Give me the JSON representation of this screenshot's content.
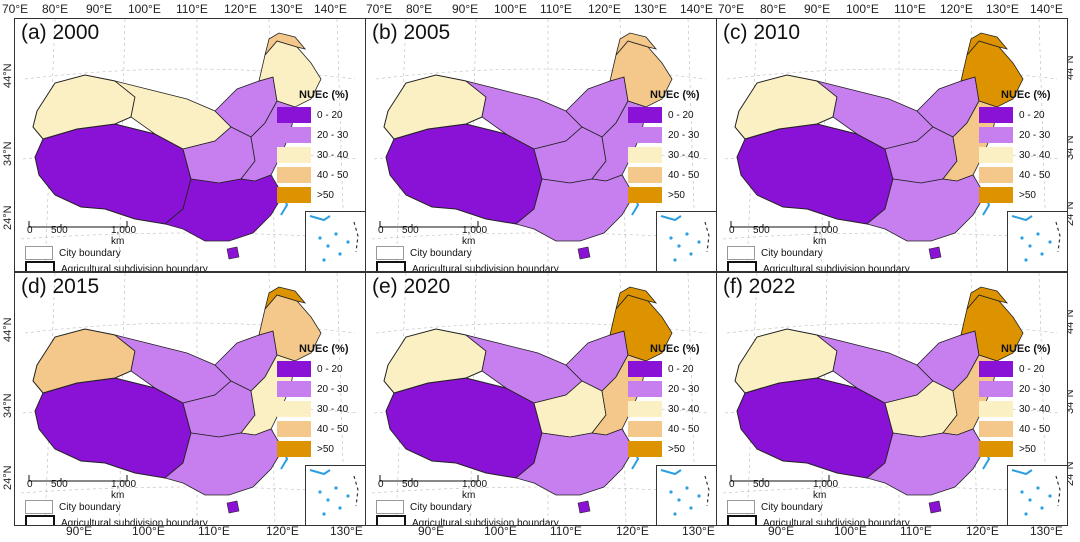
{
  "lon_top": [
    "70°E",
    "80°E",
    "90°E",
    "100°E",
    "110°E",
    "120°E",
    "130°E",
    "140°E"
  ],
  "lon_bottom": [
    "90°E",
    "100°E",
    "110°E",
    "120°E",
    "130°E"
  ],
  "lat_labels": [
    "44°N",
    "34°N",
    "24°N"
  ],
  "legend": {
    "title": "NUEc (%)",
    "items": [
      {
        "label": "0 - 20",
        "color": "#8a12d6"
      },
      {
        "label": "20 - 30",
        "color": "#c77ff0"
      },
      {
        "label": "30 - 40",
        "color": "#fbf0c4"
      },
      {
        "label": "40 - 50",
        "color": "#f3c88a"
      },
      {
        "label": ">50",
        "color": "#dd9200"
      }
    ]
  },
  "scalebar": {
    "ticks": [
      "0",
      "500",
      "1,000 km"
    ]
  },
  "boundaries": {
    "city": "City boundary",
    "subdivision": "Agricultural subdivision boundary"
  },
  "panels": [
    {
      "id": "a",
      "title": "(a) 2000",
      "fill": {
        "west": 0,
        "northwest": 2,
        "xinjiang": 2,
        "northeast": 2,
        "northeast_tip": 3,
        "north": 1,
        "central": 1,
        "south": 0,
        "east": 1
      }
    },
    {
      "id": "b",
      "title": "(b) 2005",
      "fill": {
        "west": 0,
        "northwest": 1,
        "xinjiang": 2,
        "northeast": 3,
        "northeast_tip": 3,
        "north": 1,
        "central": 1,
        "south": 1,
        "east": 1
      }
    },
    {
      "id": "c",
      "title": "(c) 2010",
      "fill": {
        "west": 0,
        "northwest": 1,
        "xinjiang": 2,
        "northeast": 4,
        "northeast_tip": 4,
        "north": 1,
        "central": 1,
        "south": 1,
        "east": 3
      }
    },
    {
      "id": "d",
      "title": "(d) 2015",
      "fill": {
        "west": 0,
        "northwest": 1,
        "xinjiang": 3,
        "northeast": 3,
        "northeast_tip": 4,
        "north": 1,
        "central": 1,
        "south": 1,
        "east": 2
      }
    },
    {
      "id": "e",
      "title": "(e) 2020",
      "fill": {
        "west": 0,
        "northwest": 1,
        "xinjiang": 2,
        "northeast": 4,
        "northeast_tip": 4,
        "north": 1,
        "central": 2,
        "south": 1,
        "east": 3
      }
    },
    {
      "id": "f",
      "title": "(f) 2022",
      "fill": {
        "west": 0,
        "northwest": 1,
        "xinjiang": 2,
        "northeast": 4,
        "northeast_tip": 4,
        "north": 1,
        "central": 2,
        "south": 1,
        "east": 3
      }
    }
  ]
}
